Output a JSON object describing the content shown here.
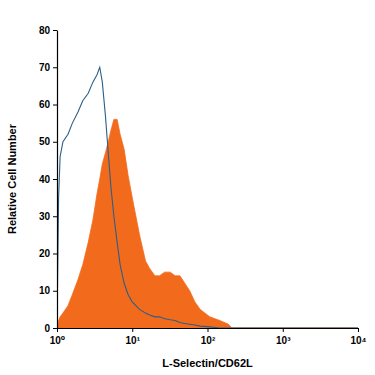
{
  "chart_data": {
    "type": "area",
    "x_label": "L-Selectin/CD62L",
    "y_label": "Relative Cell Number",
    "log": "x",
    "grid": false,
    "x": [
      1,
      1.05,
      1.1,
      1.2,
      1.4,
      1.6,
      1.9,
      2.2,
      2.6,
      3,
      3.4,
      3.7,
      4,
      4.4,
      4.8,
      5.2,
      5.7,
      6.3,
      6.9,
      7.8,
      8.8,
      10,
      12.5,
      15,
      17,
      20,
      23,
      27,
      32,
      37,
      43,
      50,
      58,
      68,
      80,
      107,
      146,
      190,
      210,
      10000
    ],
    "series": [
      {
        "type": "area",
        "color": "#f26b1d",
        "values": [
          0,
          2,
          3,
          4,
          6,
          9,
          13,
          17,
          23,
          29,
          36,
          40,
          44,
          47,
          50,
          53,
          56,
          56,
          52,
          48,
          41,
          35,
          25,
          18,
          16,
          14,
          14,
          15,
          15,
          14,
          14,
          12,
          10,
          7,
          5,
          3,
          2,
          1,
          0,
          0
        ]
      },
      {
        "type": "line",
        "color": "#2b5f86",
        "values": [
          0,
          35,
          46,
          50,
          52,
          55,
          58,
          61,
          63,
          66,
          68,
          70,
          66,
          57,
          47,
          38,
          30,
          23,
          17,
          12,
          9,
          7,
          5,
          4,
          3.5,
          3,
          3,
          2.5,
          2.2,
          2,
          1.5,
          1.2,
          1,
          0.8,
          0.5,
          0.3,
          0,
          0,
          0,
          0
        ]
      }
    ],
    "xlim": [
      1,
      10000
    ],
    "xticks": [
      {
        "value": 1,
        "label": "10⁰"
      },
      {
        "value": 10,
        "label": "10¹"
      },
      {
        "value": 100,
        "label": "10²"
      },
      {
        "value": 1000,
        "label": "10³"
      },
      {
        "value": 10000,
        "label": "10⁴"
      }
    ],
    "ylim": [
      0,
      80
    ],
    "yticks": [
      0,
      10,
      20,
      30,
      40,
      50,
      60,
      70,
      80
    ]
  }
}
